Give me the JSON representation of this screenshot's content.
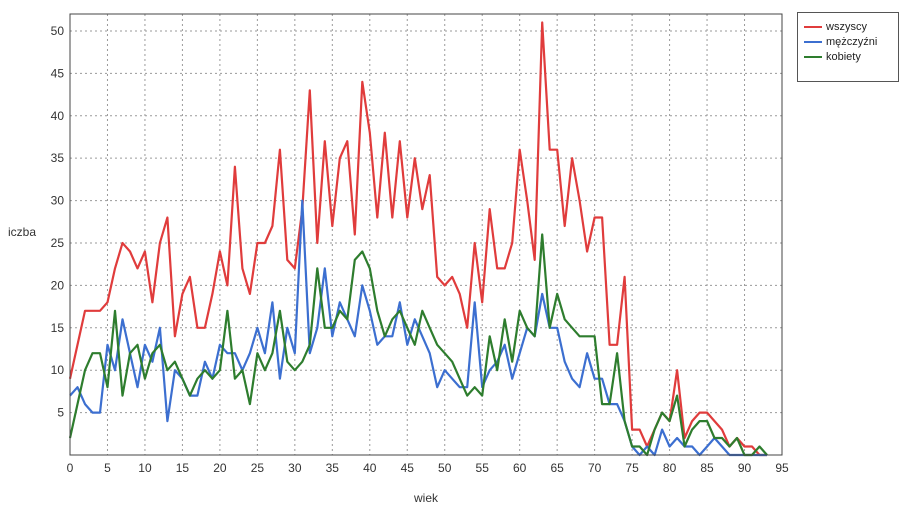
{
  "chart_data": {
    "type": "line",
    "title": "",
    "xlabel": "wiek",
    "ylabel": "iczba",
    "xlim": [
      0,
      95
    ],
    "ylim": [
      0,
      52
    ],
    "x_ticks": [
      "0",
      "5",
      "10",
      "15",
      "20",
      "25",
      "30",
      "35",
      "40",
      "45",
      "50",
      "55",
      "60",
      "65",
      "70",
      "75",
      "80",
      "85",
      "90",
      "95"
    ],
    "y_ticks": [
      "5",
      "10",
      "15",
      "20",
      "25",
      "30",
      "35",
      "40",
      "45",
      "50"
    ],
    "grid": true,
    "legend_position": "top-right",
    "series": [
      {
        "name": "wszyscy",
        "color": "#e03c3c",
        "x": [
          0,
          1,
          2,
          3,
          4,
          5,
          6,
          7,
          8,
          9,
          10,
          11,
          12,
          13,
          14,
          15,
          16,
          17,
          18,
          19,
          20,
          21,
          22,
          23,
          24,
          25,
          26,
          27,
          28,
          29,
          30,
          31,
          32,
          33,
          34,
          35,
          36,
          37,
          38,
          39,
          40,
          41,
          42,
          43,
          44,
          45,
          46,
          47,
          48,
          49,
          50,
          51,
          52,
          53,
          54,
          55,
          56,
          57,
          58,
          59,
          60,
          61,
          62,
          63,
          64,
          65,
          66,
          67,
          68,
          69,
          70,
          71,
          72,
          73,
          74,
          75,
          76,
          77,
          78,
          79,
          80,
          81,
          82,
          83,
          84,
          85,
          86,
          87,
          88,
          89,
          90,
          91,
          92,
          93
        ],
        "values": [
          9,
          13,
          17,
          17,
          17,
          18,
          22,
          25,
          24,
          22,
          24,
          18,
          25,
          28,
          14,
          19,
          21,
          15,
          15,
          19,
          24,
          20,
          34,
          22,
          19,
          25,
          25,
          27,
          36,
          23,
          22,
          29,
          43,
          25,
          37,
          27,
          35,
          37,
          26,
          44,
          38,
          28,
          38,
          28,
          37,
          28,
          35,
          29,
          33,
          21,
          20,
          21,
          19,
          15,
          25,
          18,
          29,
          22,
          22,
          25,
          36,
          30,
          23,
          51,
          36,
          36,
          27,
          35,
          30,
          24,
          28,
          28,
          13,
          13,
          21,
          3,
          3,
          1,
          3,
          5,
          4,
          10,
          2,
          4,
          5,
          5,
          4,
          3,
          1,
          2,
          1,
          1,
          0,
          0
        ]
      },
      {
        "name": "mężczyźni",
        "color": "#3c6fd0",
        "x": [
          0,
          1,
          2,
          3,
          4,
          5,
          6,
          7,
          8,
          9,
          10,
          11,
          12,
          13,
          14,
          15,
          16,
          17,
          18,
          19,
          20,
          21,
          22,
          23,
          24,
          25,
          26,
          27,
          28,
          29,
          30,
          31,
          32,
          33,
          34,
          35,
          36,
          37,
          38,
          39,
          40,
          41,
          42,
          43,
          44,
          45,
          46,
          47,
          48,
          49,
          50,
          51,
          52,
          53,
          54,
          55,
          56,
          57,
          58,
          59,
          60,
          61,
          62,
          63,
          64,
          65,
          66,
          67,
          68,
          69,
          70,
          71,
          72,
          73,
          74,
          75,
          76,
          77,
          78,
          79,
          80,
          81,
          82,
          83,
          84,
          85,
          86,
          87,
          88,
          89,
          90,
          91,
          92,
          93
        ],
        "values": [
          7,
          8,
          6,
          5,
          5,
          13,
          10,
          16,
          12,
          8,
          13,
          11,
          15,
          4,
          10,
          9,
          7,
          7,
          11,
          9,
          13,
          12,
          12,
          10,
          12,
          15,
          12,
          18,
          9,
          15,
          12,
          30,
          12,
          15,
          22,
          14,
          18,
          16,
          14,
          20,
          17,
          13,
          14,
          14,
          18,
          13,
          16,
          14,
          12,
          8,
          10,
          9,
          8,
          8,
          18,
          8,
          10,
          11,
          13,
          9,
          12,
          15,
          14,
          19,
          15,
          15,
          11,
          9,
          8,
          12,
          9,
          9,
          6,
          6,
          4,
          1,
          0,
          1,
          0,
          3,
          1,
          2,
          1,
          1,
          0,
          1,
          2,
          1,
          0,
          0,
          0,
          0,
          0,
          0
        ]
      },
      {
        "name": "kobiety",
        "color": "#2e7d2e",
        "x": [
          0,
          1,
          2,
          3,
          4,
          5,
          6,
          7,
          8,
          9,
          10,
          11,
          12,
          13,
          14,
          15,
          16,
          17,
          18,
          19,
          20,
          21,
          22,
          23,
          24,
          25,
          26,
          27,
          28,
          29,
          30,
          31,
          32,
          33,
          34,
          35,
          36,
          37,
          38,
          39,
          40,
          41,
          42,
          43,
          44,
          45,
          46,
          47,
          48,
          49,
          50,
          51,
          52,
          53,
          54,
          55,
          56,
          57,
          58,
          59,
          60,
          61,
          62,
          63,
          64,
          65,
          66,
          67,
          68,
          69,
          70,
          71,
          72,
          73,
          74,
          75,
          76,
          77,
          78,
          79,
          80,
          81,
          82,
          83,
          84,
          85,
          86,
          87,
          88,
          89,
          90,
          91,
          92,
          93
        ],
        "values": [
          2,
          6,
          10,
          12,
          12,
          8,
          17,
          7,
          12,
          13,
          9,
          12,
          13,
          10,
          11,
          9,
          7,
          9,
          10,
          9,
          10,
          17,
          9,
          10,
          6,
          12,
          10,
          12,
          17,
          11,
          10,
          11,
          13,
          22,
          15,
          15,
          17,
          16,
          23,
          24,
          22,
          17,
          14,
          16,
          17,
          15,
          13,
          17,
          15,
          13,
          12,
          11,
          9,
          7,
          8,
          7,
          14,
          10,
          16,
          11,
          17,
          15,
          14,
          26,
          15,
          19,
          16,
          15,
          14,
          14,
          14,
          6,
          6,
          12,
          4,
          1,
          1,
          0,
          3,
          5,
          4,
          7,
          1,
          3,
          4,
          4,
          2,
          2,
          1,
          2,
          0,
          0,
          1,
          0
        ]
      }
    ]
  }
}
